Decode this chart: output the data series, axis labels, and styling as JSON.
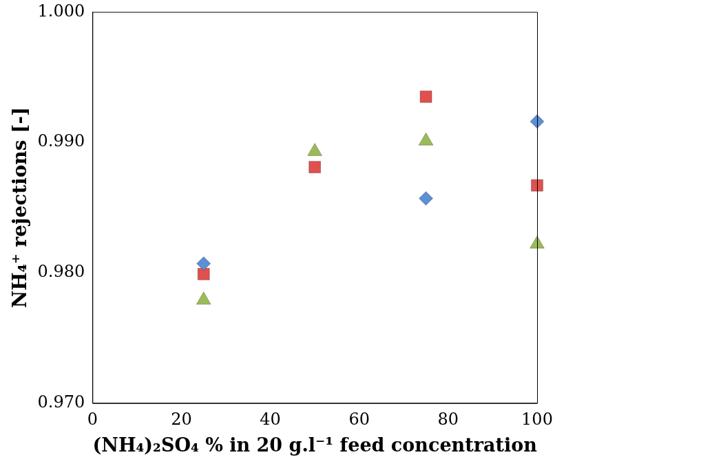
{
  "chart_data": {
    "type": "scatter",
    "xlabel": "(NH₄)₂SO₄ % in 20 g.l⁻¹ feed concentration",
    "ylabel": "NH₄⁺ rejections [-]",
    "xlim": [
      0,
      100
    ],
    "xticks": [
      0,
      20,
      40,
      60,
      80,
      100
    ],
    "ylim": [
      0.97,
      1.0
    ],
    "yticks": [
      {
        "value": 0.97,
        "label": "0.970"
      },
      {
        "value": 0.98,
        "label": "0.980"
      },
      {
        "value": 0.99,
        "label": "0.990"
      },
      {
        "value": 1.0,
        "label": "1.000"
      }
    ],
    "grid": false,
    "legend": false,
    "series": [
      {
        "color": "#5b8fd6",
        "marker": "diamond",
        "x": [
          25,
          75,
          100
        ],
        "values": [
          0.9807,
          0.9857,
          0.9916
        ]
      },
      {
        "color": "#e0504d",
        "marker": "square",
        "x": [
          25,
          50,
          75,
          100
        ],
        "values": [
          0.9799,
          0.9881,
          0.9935,
          0.9867
        ]
      },
      {
        "color": "#9bbb59",
        "marker": "triangle",
        "x": [
          25,
          50,
          75,
          100
        ],
        "values": [
          0.9779,
          0.9893,
          0.9901,
          0.9822
        ]
      }
    ]
  }
}
